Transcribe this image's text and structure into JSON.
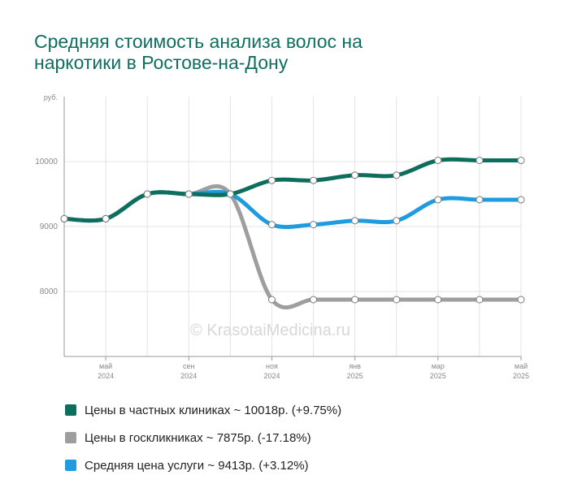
{
  "title_lines": [
    "Средняя стоимость анализа волос на",
    "наркотики в Ростове-на-Дону"
  ],
  "watermark": "© KrasotaiMedicina.ru",
  "chart_data": {
    "type": "line",
    "title": "Средняя стоимость анализа волос на наркотики в Ростове-на-Дону",
    "ylabel": "руб.",
    "ylim": [
      7000,
      11000
    ],
    "yticks": [
      8000,
      9000,
      10000
    ],
    "grid": true,
    "legend_position": "bottom",
    "x": [
      0,
      1,
      2,
      3,
      4,
      5,
      6,
      7,
      8,
      9,
      10,
      11
    ],
    "xticks": [
      {
        "i": 1,
        "month": "май",
        "year": "2024"
      },
      {
        "i": 3,
        "month": "сен",
        "year": "2024"
      },
      {
        "i": 5,
        "month": "ноя",
        "year": "2024"
      },
      {
        "i": 7,
        "month": "янв",
        "year": "2025"
      },
      {
        "i": 9,
        "month": "мар",
        "year": "2025"
      },
      {
        "i": 11,
        "month": "май",
        "year": "2025"
      }
    ],
    "series": [
      {
        "name": "Цены в госкликниках",
        "color": "#9e9e9e",
        "values": [
          9120,
          9120,
          9500,
          9500,
          9500,
          7875,
          7875,
          7875,
          7875,
          7875,
          7875,
          7875
        ]
      },
      {
        "name": "Средняя цена услуги",
        "color": "#1f9be0",
        "values": [
          9120,
          9120,
          9500,
          9500,
          9500,
          9030,
          9030,
          9090,
          9090,
          9413,
          9413,
          9413
        ]
      },
      {
        "name": "Цены в частных клиниках",
        "color": "#0e6e5e",
        "values": [
          9120,
          9120,
          9500,
          9500,
          9500,
          9710,
          9710,
          9790,
          9790,
          10018,
          10018,
          10018
        ]
      }
    ]
  },
  "legend": [
    {
      "label": "Цены в частных клиниках ~ 10018р. (+9.75%)",
      "color": "#0e6e5e"
    },
    {
      "label": "Цены в госкликниках ~ 7875р. (-17.18%)",
      "color": "#9e9e9e"
    },
    {
      "label": "Средняя цена услуги ~ 9413р. (+3.12%)",
      "color": "#1f9be0"
    }
  ]
}
